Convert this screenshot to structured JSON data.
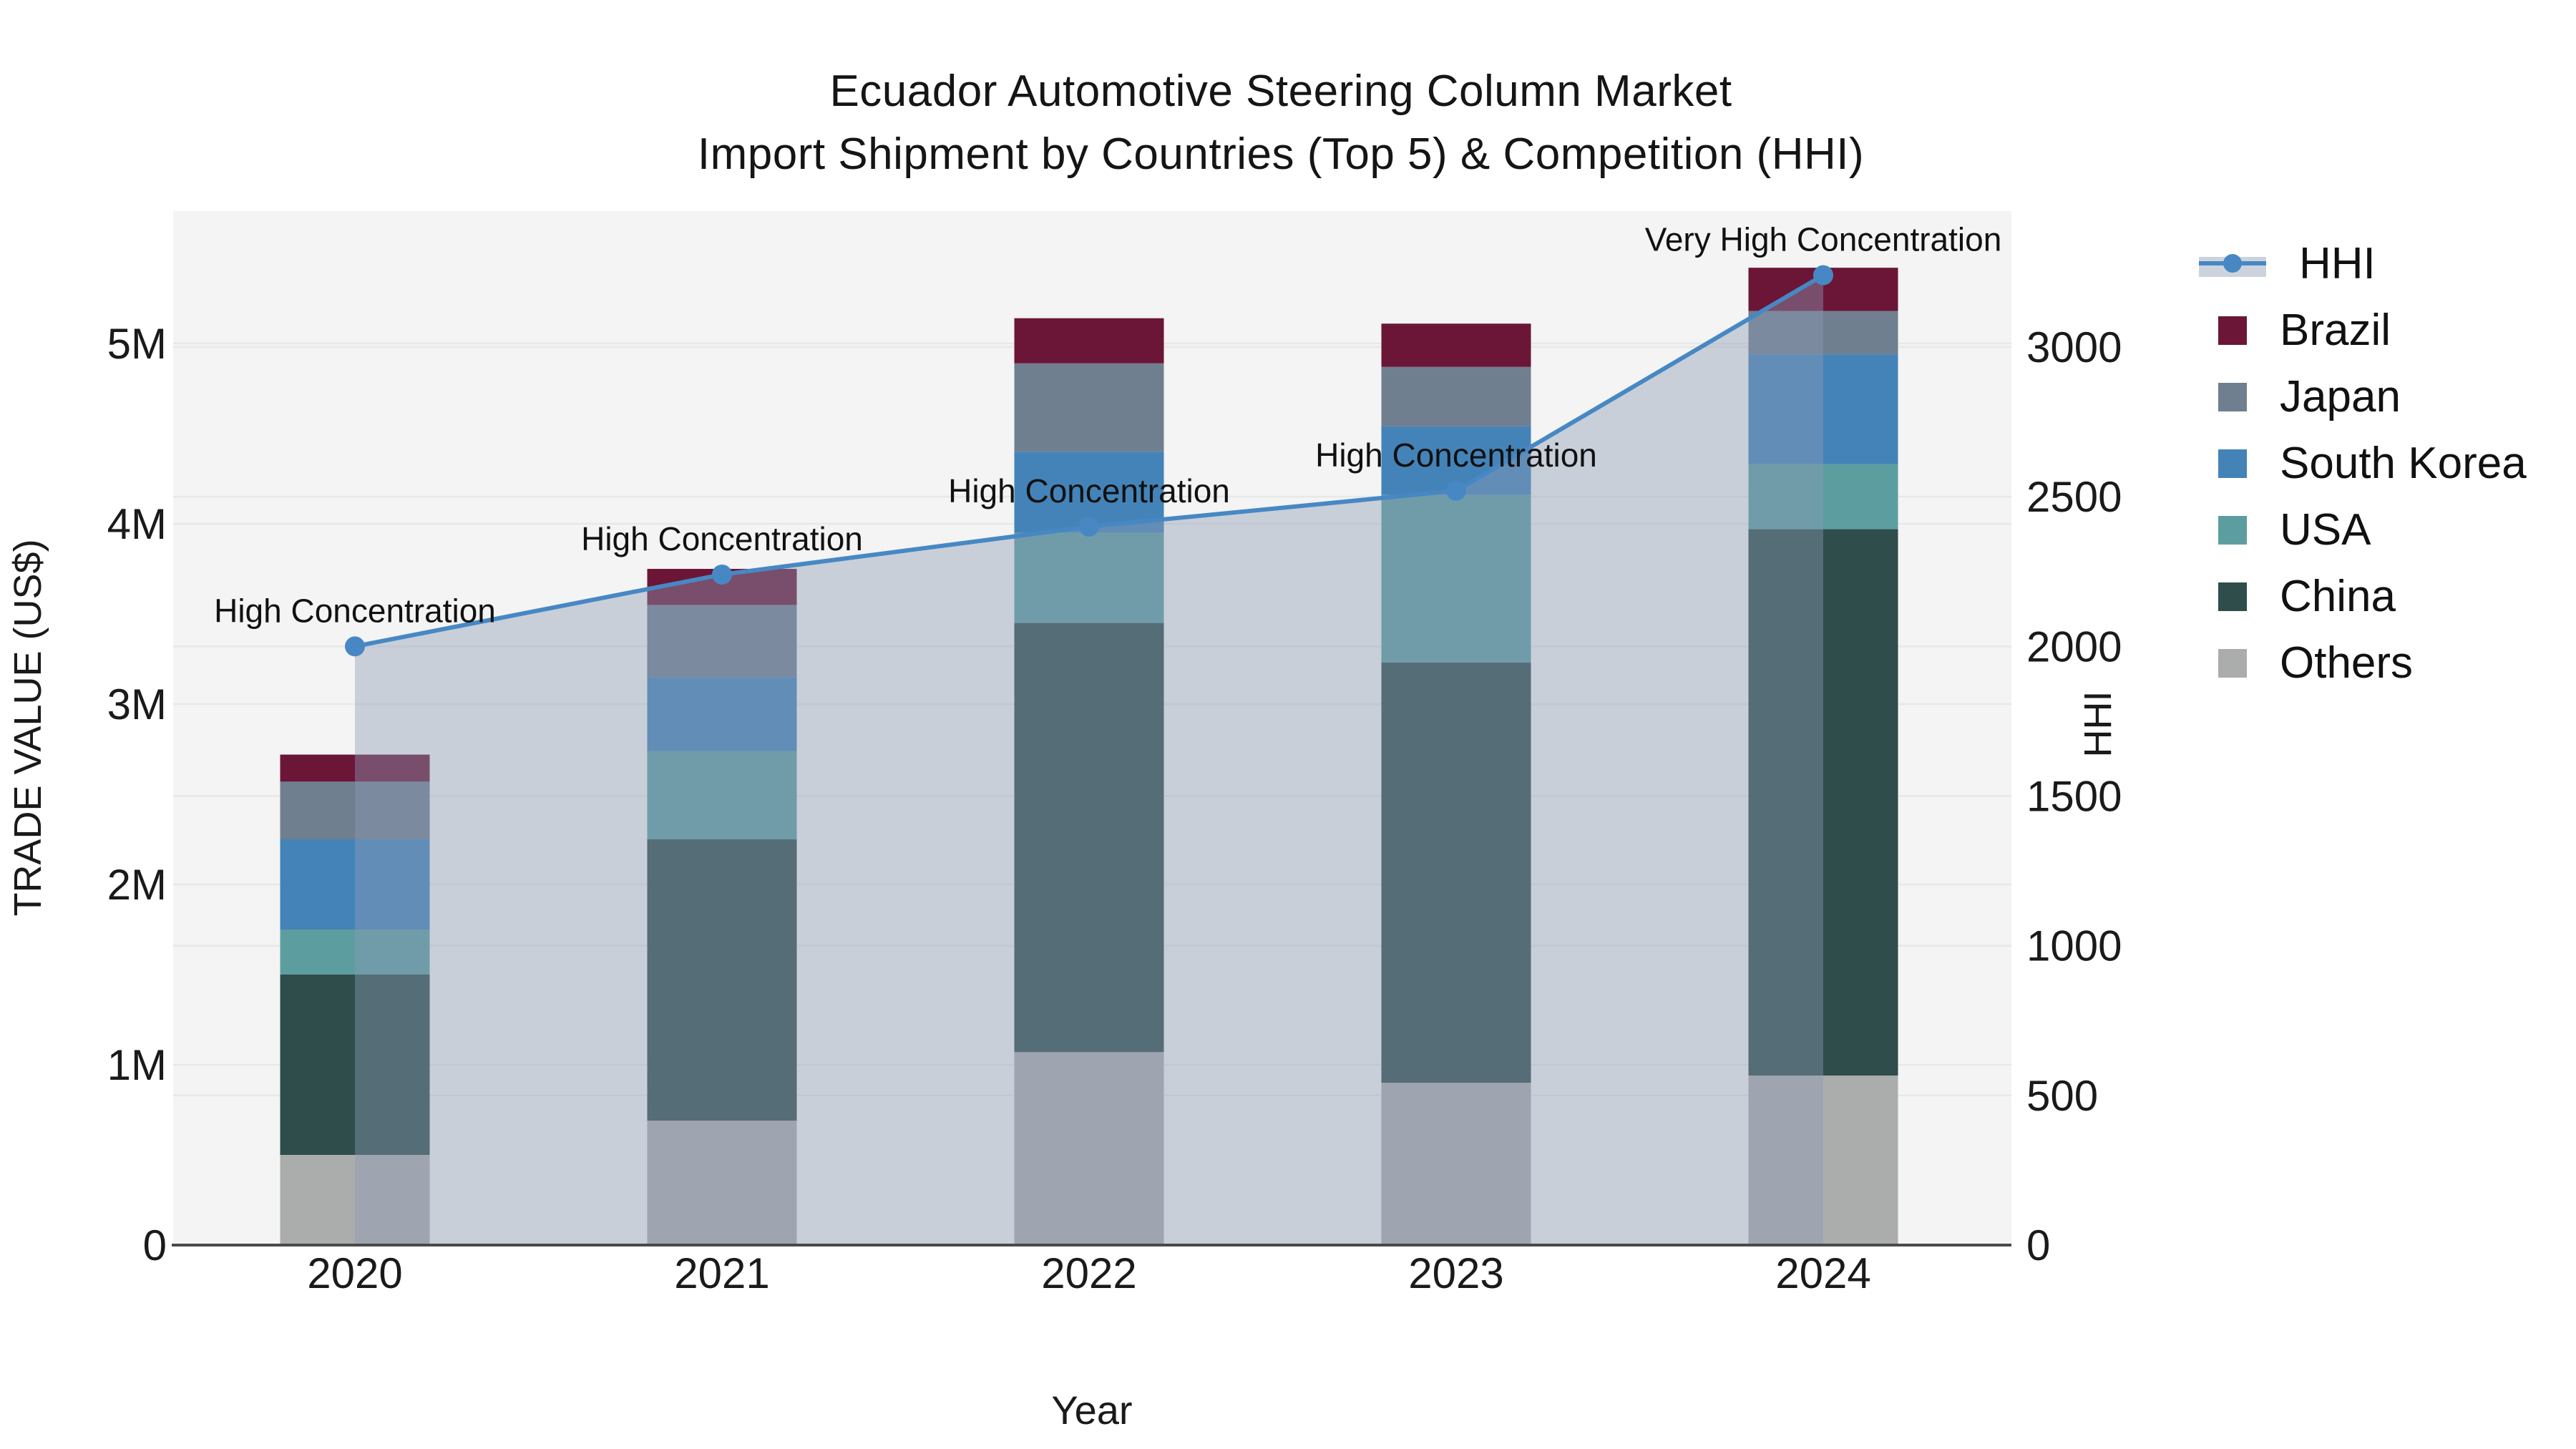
{
  "title": {
    "line1": "Ecuador Automotive Steering Column Market",
    "line2": "Import Shipment by Countries (Top 5) & Competition (HHI)"
  },
  "chart_data": {
    "type": "combo: stacked-bar + line",
    "x": {
      "label": "Year",
      "categories": [
        "2020",
        "2021",
        "2022",
        "2023",
        "2024"
      ]
    },
    "y_left": {
      "label": "TRADE VALUE (US$)",
      "tick_labels": [
        "0",
        "1M",
        "2M",
        "3M",
        "4M",
        "5M"
      ],
      "tick_values_musd": [
        0,
        1,
        2,
        3,
        4,
        5
      ],
      "axis_max_musd": 5.73
    },
    "y_right": {
      "label": "HHI",
      "tick_labels": [
        "0",
        "500",
        "1000",
        "1500",
        "2000",
        "2500",
        "3000"
      ],
      "tick_values": [
        0,
        500,
        1000,
        1500,
        2000,
        2500,
        3000
      ],
      "axis_max": 3450
    },
    "bar_series": [
      {
        "name": "Others",
        "color": "#ABACAC",
        "values_musd": [
          0.5,
          0.69,
          1.07,
          0.9,
          0.94
        ]
      },
      {
        "name": "China",
        "color": "#2E4D4B",
        "values_musd": [
          1.0,
          1.56,
          2.38,
          2.33,
          3.03
        ]
      },
      {
        "name": "USA",
        "color": "#5C9EA0",
        "values_musd": [
          0.25,
          0.49,
          0.5,
          0.93,
          0.36
        ]
      },
      {
        "name": "South Korea",
        "color": "#4483B8",
        "values_musd": [
          0.5,
          0.41,
          0.45,
          0.38,
          0.61
        ]
      },
      {
        "name": "Japan",
        "color": "#6F7F8F",
        "values_musd": [
          0.32,
          0.4,
          0.49,
          0.33,
          0.24
        ]
      },
      {
        "name": "Brazil",
        "color": "#6B1637",
        "values_musd": [
          0.15,
          0.2,
          0.25,
          0.24,
          0.24
        ]
      }
    ],
    "line_series": {
      "name": "HHI",
      "color": "#4788C4",
      "area_fill": "rgba(140,155,180,0.42)",
      "values": [
        2000,
        2240,
        2400,
        2520,
        3240
      ]
    },
    "annotations": [
      {
        "x": "2020",
        "text": "High Concentration"
      },
      {
        "x": "2021",
        "text": "High Concentration"
      },
      {
        "x": "2022",
        "text": "High Concentration"
      },
      {
        "x": "2023",
        "text": "High Concentration"
      },
      {
        "x": "2024",
        "text": "Very High Concentration"
      }
    ],
    "legend": {
      "position": "right",
      "items": [
        "HHI",
        "Brazil",
        "Japan",
        "South Korea",
        "USA",
        "China",
        "Others"
      ]
    },
    "grid": true,
    "plot_bg": "#F3F4F3"
  }
}
